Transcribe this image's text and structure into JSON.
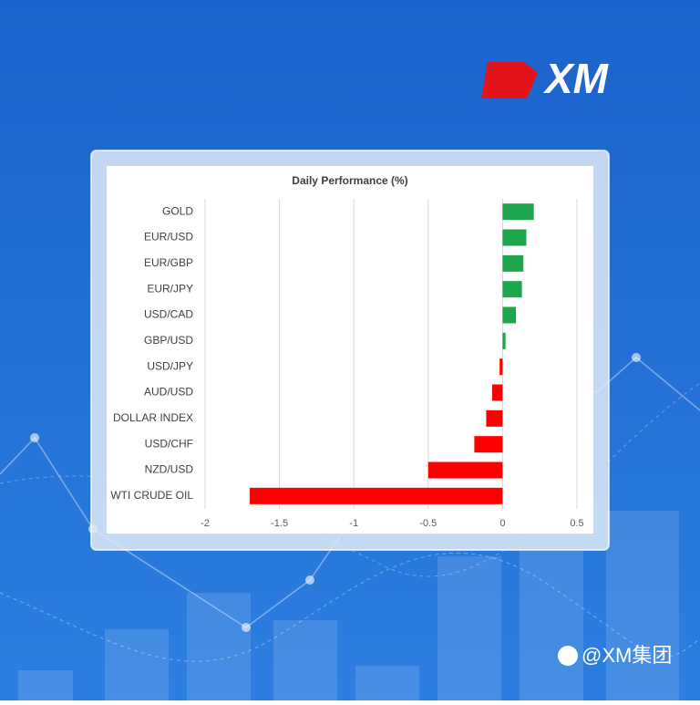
{
  "brand": {
    "logo": "XM",
    "watermark": "@XM集团"
  },
  "chart_data": {
    "type": "hbar",
    "title": "Daily Performance (%)",
    "categories": [
      "GOLD",
      "EUR/USD",
      "EUR/GBP",
      "EUR/JPY",
      "USD/CAD",
      "GBP/USD",
      "USD/JPY",
      "AUD/USD",
      "DOLLAR INDEX",
      "USD/CHF",
      "NZD/USD",
      "WTI CRUDE OIL"
    ],
    "values": [
      0.21,
      0.16,
      0.14,
      0.13,
      0.09,
      0.02,
      -0.02,
      -0.07,
      -0.11,
      -0.19,
      -0.5,
      -1.7
    ],
    "positive_color": "#1ea64f",
    "negative_color": "#ff0000",
    "xlim": [
      -2,
      0.5
    ],
    "xticks": [
      -2,
      -1.5,
      -1,
      -0.5,
      0,
      0.5
    ],
    "grid": true
  }
}
